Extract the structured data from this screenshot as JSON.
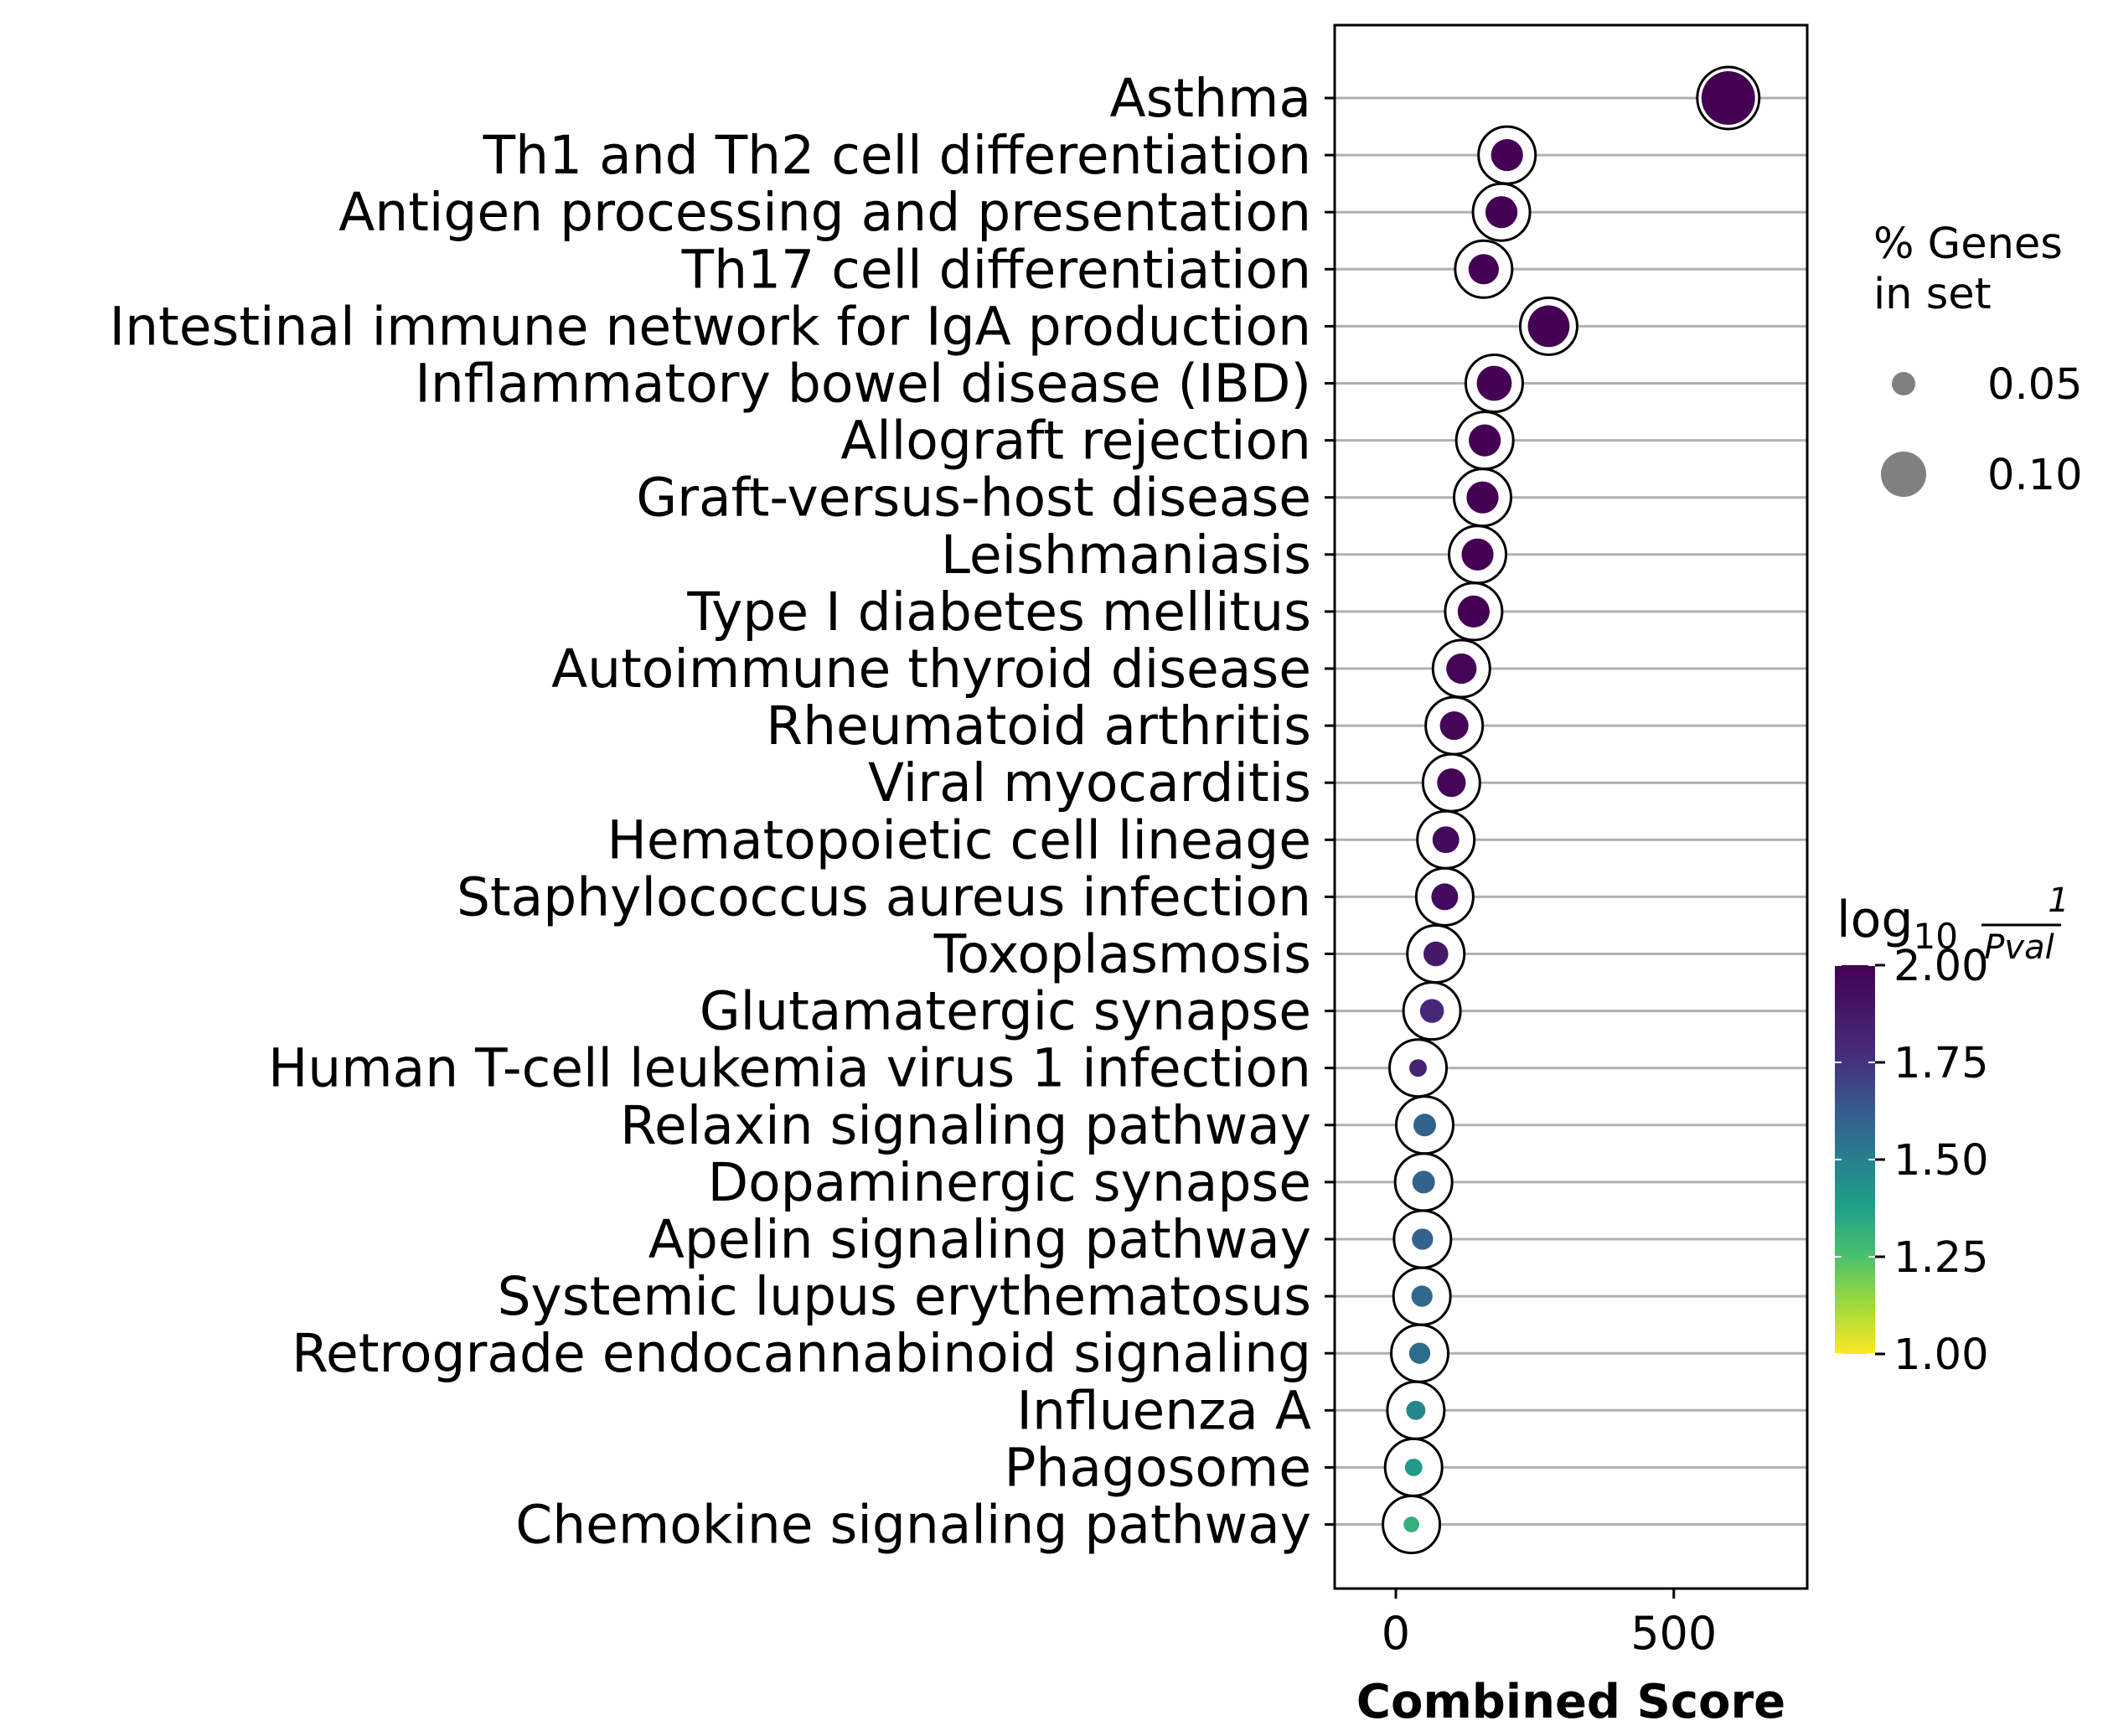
{
  "chart_data": {
    "type": "scatter",
    "title": "",
    "xlabel": "Combined Score",
    "ylabel": "",
    "xlim": [
      -110,
      740
    ],
    "xticks": [
      0,
      500
    ],
    "grid": "horizontal",
    "categories": [
      "Asthma",
      "Th1 and Th2 cell differentiation",
      "Antigen processing and presentation",
      "Th17 cell differentiation",
      "Intestinal immune network for IgA production",
      "Inflammatory bowel disease (IBD)",
      "Allograft rejection",
      "Graft-versus-host disease",
      "Leishmaniasis",
      "Type I diabetes mellitus",
      "Autoimmune thyroid disease",
      "Rheumatoid arthritis",
      "Viral myocarditis",
      "Hematopoietic cell lineage",
      "Staphylococcus aureus infection",
      "Toxoplasmosis",
      "Glutamatergic synapse",
      "Human T-cell leukemia virus 1 infection",
      "Relaxin signaling pathway",
      "Dopaminergic synapse",
      "Apelin signaling pathway",
      "Systemic lupus erythematosus",
      "Retrograde endocannabinoid signaling",
      "Influenza A",
      "Phagosome",
      "Chemokine signaling pathway"
    ],
    "combined_score": [
      598,
      200,
      190,
      158,
      275,
      177,
      160,
      156,
      147,
      140,
      118,
      105,
      100,
      90,
      88,
      72,
      65,
      40,
      52,
      50,
      48,
      47,
      43,
      36,
      32,
      28
    ],
    "neg_log10_pval": [
      2.0,
      2.0,
      2.0,
      2.0,
      2.0,
      2.0,
      2.0,
      2.0,
      2.0,
      2.0,
      1.98,
      1.98,
      1.98,
      1.95,
      1.95,
      1.88,
      1.8,
      1.82,
      1.6,
      1.6,
      1.6,
      1.58,
      1.57,
      1.47,
      1.4,
      1.32
    ],
    "pct_genes_in_set": [
      0.14,
      0.05,
      0.05,
      0.045,
      0.085,
      0.06,
      0.05,
      0.05,
      0.05,
      0.05,
      0.045,
      0.04,
      0.04,
      0.035,
      0.035,
      0.03,
      0.028,
      0.015,
      0.025,
      0.025,
      0.022,
      0.022,
      0.022,
      0.018,
      0.015,
      0.012
    ],
    "size_legend": {
      "title_line1": "% Genes",
      "title_line2": "in set",
      "entries": [
        {
          "label": "0.05",
          "value": 0.05
        },
        {
          "label": "0.10",
          "value": 0.1
        }
      ],
      "placement": "right"
    },
    "colorbar": {
      "title_main": "log",
      "title_sub": "10",
      "title_num": "1",
      "title_den": "Pval",
      "range": [
        1.0,
        2.0
      ],
      "tick_labels": [
        "2.00",
        "1.75",
        "1.50",
        "1.25",
        "1.00"
      ],
      "tick_values": [
        2.0,
        1.75,
        1.5,
        1.25,
        1.0
      ],
      "colormap": "viridis_r",
      "placement": "right"
    },
    "colors": {
      "grid": "#b0b0b0",
      "legend_dot": "#808080",
      "ring": "#000000"
    }
  }
}
